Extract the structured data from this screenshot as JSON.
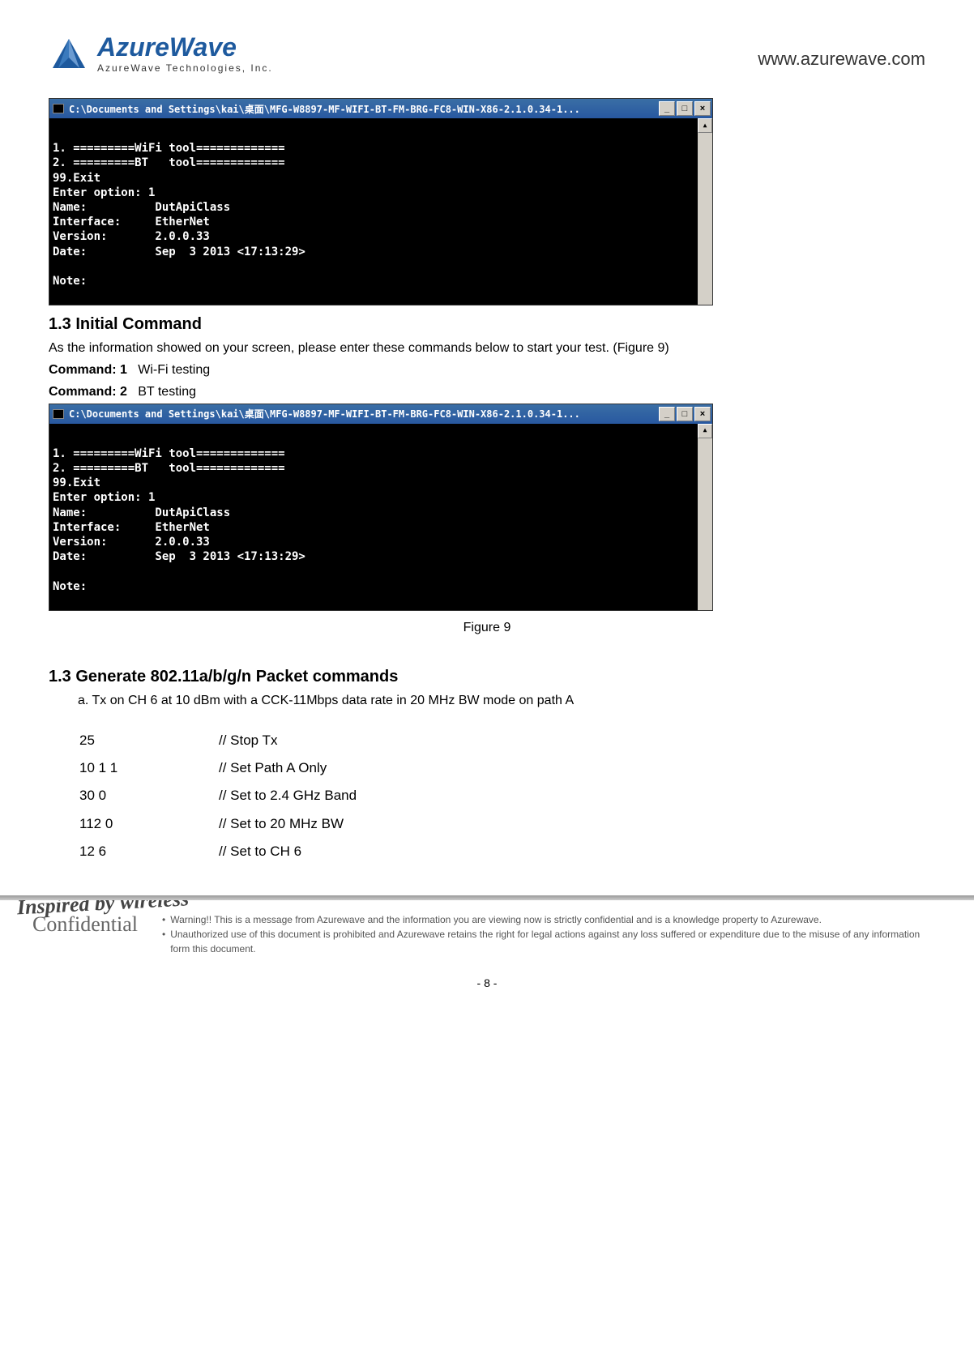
{
  "header": {
    "logo_name": "AzureWave",
    "logo_subtitle": "AzureWave  Technologies,  Inc.",
    "logo_color": "#1e5a9e",
    "website": "www.azurewave.com"
  },
  "console": {
    "title": "C:\\Documents and Settings\\kai\\桌面\\MFG-W8897-MF-WIFI-BT-FM-BRG-FC8-WIN-X86-2.1.0.34-1...",
    "btn_min": "_",
    "btn_max": "□",
    "btn_close": "×",
    "lines": "\n1. =========WiFi tool=============\n2. =========BT   tool=============\n99.Exit\nEnter option: 1\nName:          DutApiClass\nInterface:     EtherNet\nVersion:       2.0.0.33\nDate:          Sep  3 2013 <17:13:29>\n\nNote:"
  },
  "section1": {
    "title": "1.3 Initial Command",
    "intro": "As the information showed on your screen, please enter these commands below to start your test. (Figure 9)",
    "cmd1_label": "Command: 1",
    "cmd1_desc": "Wi-Fi testing",
    "cmd2_label": "Command: 2",
    "cmd2_desc": "BT testing"
  },
  "figure_caption": "Figure 9",
  "section2": {
    "title": "1.3 Generate 802.11a/b/g/n Packet commands",
    "subtitle": "a. Tx on CH 6 at 10 dBm with a CCK-11Mbps data rate in 20 MHz BW mode on path A",
    "rows": [
      {
        "cmd": "25",
        "comment": "// Stop Tx"
      },
      {
        "cmd": "10 1 1",
        "comment": "// Set Path A Only"
      },
      {
        "cmd": "30 0",
        "comment": "// Set to 2.4 GHz Band"
      },
      {
        "cmd": "112 0",
        "comment": "// Set to 20 MHz BW"
      },
      {
        "cmd": "12 6",
        "comment": "// Set to CH 6"
      }
    ]
  },
  "footer": {
    "tagline": "Inspired by wireless",
    "confidential": "Confidential",
    "warn1": "Warning!! This is a message from Azurewave and the information you are viewing now is strictly confidential and is a knowledge property to Azurewave.",
    "warn2": "Unauthorized use of this document is prohibited and Azurewave retains the right for legal actions against any loss suffered or expenditure due to the misuse of any information form this document.",
    "page_number": "- 8 -"
  }
}
